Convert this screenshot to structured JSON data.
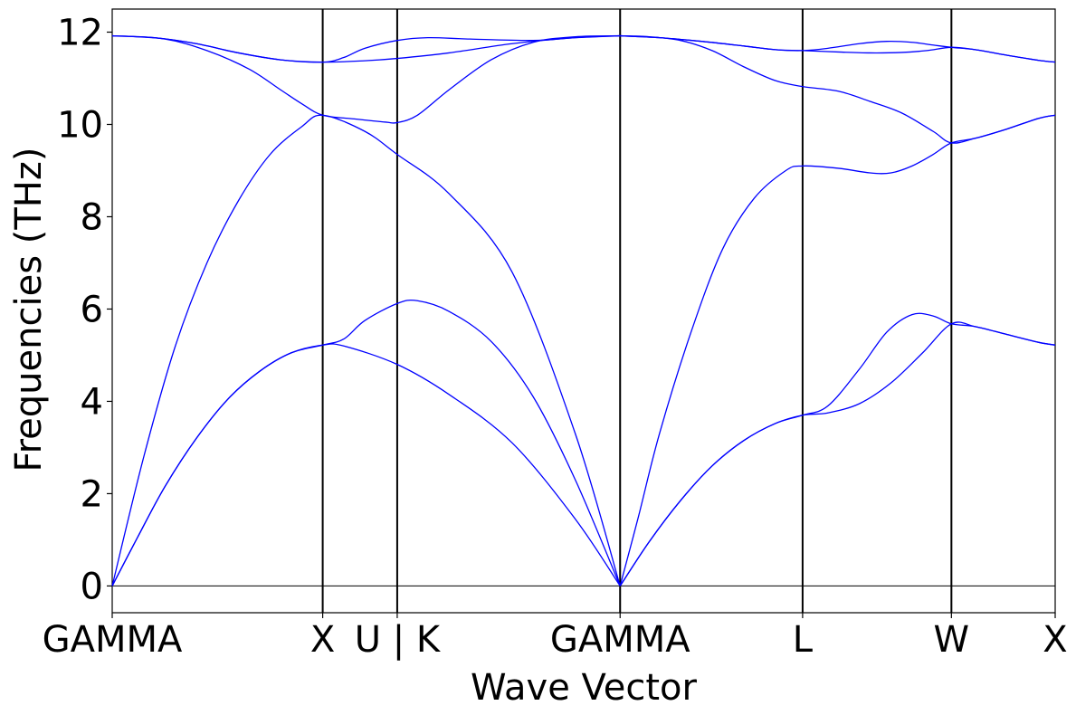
{
  "chart_data": {
    "type": "line",
    "title": "",
    "xlabel": "Wave Vector",
    "ylabel": "Frequencies (THz)",
    "ylim": [
      -0.58,
      12.5
    ],
    "yticks": [
      0,
      2,
      4,
      6,
      8,
      10,
      12
    ],
    "grid": false,
    "legend": "none",
    "line_color": "#0000ff",
    "x_labels": [
      {
        "label": "GAMMA",
        "x": 0.0
      },
      {
        "label": "X",
        "x": 1.0
      },
      {
        "label": "U | K",
        "x": 1.354
      },
      {
        "label": "GAMMA",
        "x": 2.413
      },
      {
        "label": "L",
        "x": 3.28
      },
      {
        "label": "W",
        "x": 3.987
      },
      {
        "label": "X",
        "x": 4.48
      }
    ],
    "series": [
      {
        "points": [
          [
            0,
            0
          ],
          [
            0.12,
            1.05
          ],
          [
            0.25,
            2.15
          ],
          [
            0.4,
            3.2
          ],
          [
            0.55,
            4.05
          ],
          [
            0.7,
            4.65
          ],
          [
            0.85,
            5.05
          ],
          [
            1.0,
            5.22
          ],
          [
            1.1,
            5.2
          ],
          [
            1.354,
            4.8
          ],
          [
            1.6,
            4.15
          ],
          [
            1.9,
            3.1
          ],
          [
            2.2,
            1.45
          ],
          [
            2.413,
            0
          ]
        ]
      },
      {
        "points": [
          [
            0,
            0
          ],
          [
            0.12,
            1.05
          ],
          [
            0.25,
            2.15
          ],
          [
            0.4,
            3.2
          ],
          [
            0.55,
            4.05
          ],
          [
            0.7,
            4.65
          ],
          [
            0.85,
            5.05
          ],
          [
            1.0,
            5.22
          ],
          [
            1.1,
            5.35
          ],
          [
            1.2,
            5.75
          ],
          [
            1.354,
            6.12
          ],
          [
            1.45,
            6.18
          ],
          [
            1.6,
            5.95
          ],
          [
            1.8,
            5.3
          ],
          [
            2.0,
            4.1
          ],
          [
            2.2,
            2.3
          ],
          [
            2.413,
            0
          ]
        ]
      },
      {
        "points": [
          [
            0,
            0
          ],
          [
            0.15,
            2.8
          ],
          [
            0.3,
            5.2
          ],
          [
            0.45,
            7.0
          ],
          [
            0.6,
            8.35
          ],
          [
            0.75,
            9.35
          ],
          [
            0.9,
            9.95
          ],
          [
            1.0,
            10.2
          ],
          [
            1.2,
            9.85
          ],
          [
            1.354,
            9.35
          ],
          [
            1.6,
            8.5
          ],
          [
            1.9,
            6.8
          ],
          [
            2.2,
            3.3
          ],
          [
            2.413,
            0
          ]
        ]
      },
      {
        "points": [
          [
            0,
            11.92
          ],
          [
            0.2,
            11.88
          ],
          [
            0.4,
            11.75
          ],
          [
            0.6,
            11.55
          ],
          [
            0.8,
            11.4
          ],
          [
            1.0,
            11.35
          ],
          [
            1.2,
            11.38
          ],
          [
            1.354,
            11.43
          ],
          [
            1.6,
            11.55
          ],
          [
            1.9,
            11.75
          ],
          [
            2.2,
            11.88
          ],
          [
            2.413,
            11.92
          ]
        ]
      },
      {
        "points": [
          [
            0,
            11.92
          ],
          [
            0.25,
            11.85
          ],
          [
            0.45,
            11.6
          ],
          [
            0.65,
            11.2
          ],
          [
            0.8,
            10.75
          ],
          [
            0.9,
            10.45
          ],
          [
            1.0,
            10.2
          ],
          [
            1.15,
            10.12
          ],
          [
            1.3,
            10.05
          ],
          [
            1.354,
            10.04
          ],
          [
            1.45,
            10.2
          ],
          [
            1.6,
            10.75
          ],
          [
            1.8,
            11.4
          ],
          [
            2.0,
            11.78
          ],
          [
            2.2,
            11.9
          ],
          [
            2.413,
            11.92
          ]
        ]
      },
      {
        "points": [
          [
            0,
            11.92
          ],
          [
            0.2,
            11.88
          ],
          [
            0.4,
            11.75
          ],
          [
            0.6,
            11.55
          ],
          [
            0.8,
            11.4
          ],
          [
            1.0,
            11.35
          ],
          [
            1.1,
            11.45
          ],
          [
            1.2,
            11.65
          ],
          [
            1.354,
            11.82
          ],
          [
            1.5,
            11.88
          ],
          [
            1.7,
            11.85
          ],
          [
            2.0,
            11.82
          ],
          [
            2.2,
            11.88
          ],
          [
            2.413,
            11.92
          ]
        ]
      },
      {
        "points": [
          [
            2.413,
            0
          ],
          [
            2.55,
            0.95
          ],
          [
            2.7,
            1.85
          ],
          [
            2.85,
            2.6
          ],
          [
            3.0,
            3.15
          ],
          [
            3.15,
            3.52
          ],
          [
            3.28,
            3.7
          ],
          [
            3.4,
            3.75
          ],
          [
            3.55,
            3.95
          ],
          [
            3.7,
            4.4
          ],
          [
            3.85,
            5.05
          ],
          [
            3.987,
            5.68
          ],
          [
            4.1,
            5.62
          ],
          [
            4.25,
            5.45
          ],
          [
            4.4,
            5.28
          ],
          [
            4.48,
            5.22
          ]
        ]
      },
      {
        "points": [
          [
            2.413,
            0
          ],
          [
            2.55,
            0.95
          ],
          [
            2.7,
            1.85
          ],
          [
            2.85,
            2.6
          ],
          [
            3.0,
            3.15
          ],
          [
            3.15,
            3.52
          ],
          [
            3.28,
            3.7
          ],
          [
            3.4,
            3.9
          ],
          [
            3.55,
            4.7
          ],
          [
            3.68,
            5.5
          ],
          [
            3.8,
            5.88
          ],
          [
            3.9,
            5.85
          ],
          [
            3.987,
            5.68
          ],
          [
            4.1,
            5.62
          ],
          [
            4.25,
            5.45
          ],
          [
            4.4,
            5.28
          ],
          [
            4.48,
            5.22
          ]
        ]
      },
      {
        "points": [
          [
            2.413,
            0
          ],
          [
            2.5,
            1.5
          ],
          [
            2.6,
            3.3
          ],
          [
            2.75,
            5.5
          ],
          [
            2.9,
            7.3
          ],
          [
            3.05,
            8.4
          ],
          [
            3.2,
            9.0
          ],
          [
            3.28,
            9.1
          ],
          [
            3.45,
            9.05
          ],
          [
            3.6,
            8.95
          ],
          [
            3.7,
            8.95
          ],
          [
            3.8,
            9.1
          ],
          [
            3.9,
            9.35
          ],
          [
            3.987,
            9.6
          ],
          [
            4.1,
            9.7
          ],
          [
            4.25,
            9.9
          ],
          [
            4.4,
            10.13
          ],
          [
            4.48,
            10.2
          ]
        ]
      },
      {
        "points": [
          [
            2.413,
            11.92
          ],
          [
            2.55,
            11.9
          ],
          [
            2.7,
            11.82
          ],
          [
            2.85,
            11.6
          ],
          [
            3.0,
            11.25
          ],
          [
            3.15,
            10.95
          ],
          [
            3.28,
            10.82
          ],
          [
            3.45,
            10.72
          ],
          [
            3.6,
            10.5
          ],
          [
            3.75,
            10.25
          ],
          [
            3.9,
            9.85
          ],
          [
            3.987,
            9.6
          ],
          [
            4.1,
            9.7
          ],
          [
            4.25,
            9.9
          ],
          [
            4.4,
            10.13
          ],
          [
            4.48,
            10.2
          ]
        ]
      },
      {
        "points": [
          [
            2.413,
            11.92
          ],
          [
            2.6,
            11.88
          ],
          [
            2.8,
            11.8
          ],
          [
            3.0,
            11.7
          ],
          [
            3.15,
            11.62
          ],
          [
            3.28,
            11.6
          ],
          [
            3.45,
            11.57
          ],
          [
            3.6,
            11.55
          ],
          [
            3.75,
            11.56
          ],
          [
            3.87,
            11.6
          ],
          [
            3.987,
            11.67
          ],
          [
            4.1,
            11.62
          ],
          [
            4.25,
            11.5
          ],
          [
            4.4,
            11.39
          ],
          [
            4.48,
            11.35
          ]
        ]
      },
      {
        "points": [
          [
            2.413,
            11.92
          ],
          [
            2.6,
            11.88
          ],
          [
            2.8,
            11.8
          ],
          [
            3.0,
            11.7
          ],
          [
            3.15,
            11.62
          ],
          [
            3.28,
            11.6
          ],
          [
            3.4,
            11.65
          ],
          [
            3.55,
            11.75
          ],
          [
            3.68,
            11.8
          ],
          [
            3.8,
            11.78
          ],
          [
            3.9,
            11.72
          ],
          [
            3.987,
            11.67
          ],
          [
            4.1,
            11.62
          ],
          [
            4.25,
            11.5
          ],
          [
            4.4,
            11.39
          ],
          [
            4.48,
            11.35
          ]
        ]
      }
    ]
  }
}
